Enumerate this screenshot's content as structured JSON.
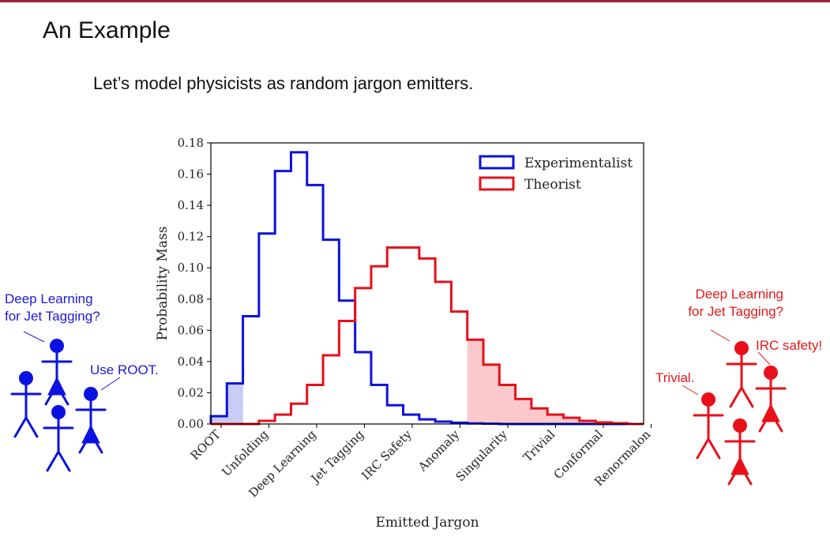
{
  "slide": {
    "title": "An Example",
    "subtitle": "Let’s model physicists as random jargon emitters."
  },
  "callouts": {
    "blue_question": [
      "Deep Learning",
      "for Jet Tagging?"
    ],
    "blue_answer": "Use ROOT.",
    "red_question": [
      "Deep Learning",
      "for Jet Tagging?"
    ],
    "red_answer_1": "IRC safety!",
    "red_answer_2": "Trivial."
  },
  "colors": {
    "experimentalist": "#0b12e0",
    "theorist": "#e8101a",
    "experimentalist_fill": "#c9cdf6",
    "theorist_fill": "#fbc9cb",
    "slide_bar": "#a3203e"
  },
  "chart_data": {
    "type": "step-histogram",
    "xlabel": "Emitted Jargon",
    "ylabel": "Probability Mass",
    "ylim": [
      0,
      0.18
    ],
    "yticks": [
      "0.00",
      "0.02",
      "0.04",
      "0.06",
      "0.08",
      "0.10",
      "0.12",
      "0.14",
      "0.16",
      "0.18"
    ],
    "categories": [
      "ROOT",
      "Unfolding",
      "Deep Learning",
      "Jet Tagging",
      "IRC Safety",
      "Anomaly",
      "Singularity",
      "Trivial",
      "Conformal",
      "Renormalon"
    ],
    "bins_per_category": 3,
    "legend": {
      "position": "top-right"
    },
    "series": [
      {
        "name": "Experimentalist",
        "values": [
          0.005,
          0.026,
          0.069,
          0.122,
          0.162,
          0.174,
          0.153,
          0.118,
          0.079,
          0.046,
          0.025,
          0.012,
          0.006,
          0.003,
          0.0015,
          0.0008,
          0.0004,
          0.0002,
          0,
          0,
          0,
          0,
          0,
          0,
          0,
          0,
          0
        ],
        "shaded_bins": [
          0,
          1
        ]
      },
      {
        "name": "Theorist",
        "values": [
          0,
          0,
          0,
          0.002,
          0.006,
          0.013,
          0.025,
          0.044,
          0.066,
          0.087,
          0.101,
          0.113,
          0.113,
          0.106,
          0.091,
          0.072,
          0.054,
          0.038,
          0.025,
          0.016,
          0.01,
          0.006,
          0.004,
          0.002,
          0.001,
          0.0005,
          0
        ],
        "shaded_bins": [
          16,
          17,
          18,
          19,
          20,
          21,
          22,
          23,
          24,
          25,
          26
        ]
      }
    ]
  }
}
